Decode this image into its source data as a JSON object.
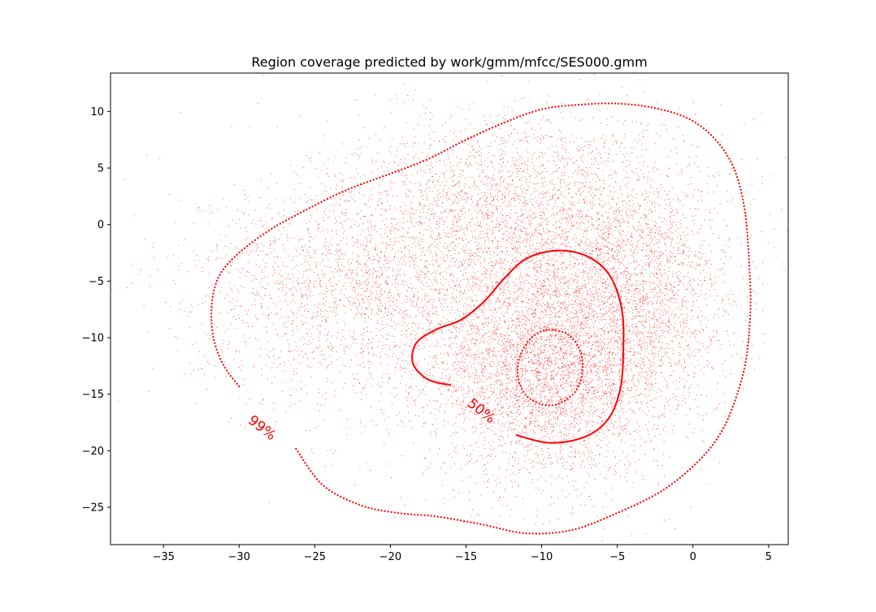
{
  "chart_data": {
    "type": "scatter",
    "title": "Region coverage predicted by work/gmm/mfcc/SES000.gmm",
    "xlabel": "",
    "ylabel": "",
    "xlim": [
      -38.5,
      6.3
    ],
    "ylim": [
      -28.3,
      13.4
    ],
    "xticks": [
      -35,
      -30,
      -25,
      -20,
      -15,
      -10,
      -5,
      0,
      5
    ],
    "yticks": [
      -25,
      -20,
      -15,
      -10,
      -5,
      0,
      5,
      10
    ],
    "grid": false,
    "color": "#ff0000",
    "scatter": {
      "approx_point_count": 12000,
      "clusters": [
        {
          "center": [
            -9.5,
            -12.5
          ],
          "std": [
            4.0,
            5.0
          ],
          "weight": 0.4
        },
        {
          "center": [
            -11.0,
            1.0
          ],
          "std": [
            5.5,
            4.5
          ],
          "weight": 0.25
        },
        {
          "center": [
            -22.0,
            -6.0
          ],
          "std": [
            5.5,
            5.0
          ],
          "weight": 0.2
        },
        {
          "center": [
            -3.0,
            -6.0
          ],
          "std": [
            3.0,
            5.0
          ],
          "weight": 0.15
        }
      ]
    },
    "contours": [
      {
        "level": "99%",
        "style": "dotted",
        "label_position": [
          -28.5,
          -18.0
        ],
        "label_rotation_deg": 38,
        "points": [
          [
            -30.0,
            -14.3
          ],
          [
            -31.0,
            -12.5
          ],
          [
            -31.7,
            -10.0
          ],
          [
            -31.8,
            -7.0
          ],
          [
            -31.3,
            -4.5
          ],
          [
            -30.0,
            -2.5
          ],
          [
            -28.0,
            -0.5
          ],
          [
            -26.0,
            1.0
          ],
          [
            -23.0,
            3.0
          ],
          [
            -20.0,
            4.5
          ],
          [
            -17.5,
            5.8
          ],
          [
            -15.0,
            7.5
          ],
          [
            -12.5,
            9.0
          ],
          [
            -10.0,
            10.2
          ],
          [
            -7.5,
            10.6
          ],
          [
            -5.0,
            10.7
          ],
          [
            -2.5,
            10.3
          ],
          [
            -0.2,
            9.3
          ],
          [
            1.5,
            7.5
          ],
          [
            2.7,
            5.0
          ],
          [
            3.4,
            1.5
          ],
          [
            3.7,
            -3.0
          ],
          [
            3.8,
            -7.5
          ],
          [
            3.5,
            -12.0
          ],
          [
            2.8,
            -15.5
          ],
          [
            1.8,
            -18.5
          ],
          [
            0.3,
            -21.0
          ],
          [
            -2.0,
            -23.5
          ],
          [
            -5.0,
            -25.5
          ],
          [
            -8.0,
            -27.0
          ],
          [
            -11.0,
            -27.3
          ],
          [
            -14.0,
            -26.5
          ],
          [
            -17.0,
            -25.8
          ],
          [
            -19.5,
            -25.5
          ],
          [
            -22.0,
            -24.8
          ],
          [
            -24.5,
            -23.0
          ],
          [
            -26.3,
            -19.7
          ]
        ]
      },
      {
        "level": "50%",
        "style": "solid",
        "label_position": [
          -14.0,
          -16.5
        ],
        "label_rotation_deg": 38,
        "points": [
          [
            -16.0,
            -14.2
          ],
          [
            -17.5,
            -13.7
          ],
          [
            -18.5,
            -12.3
          ],
          [
            -18.3,
            -10.5
          ],
          [
            -17.0,
            -9.3
          ],
          [
            -15.3,
            -8.4
          ],
          [
            -13.8,
            -6.8
          ],
          [
            -12.5,
            -4.8
          ],
          [
            -11.0,
            -3.0
          ],
          [
            -9.0,
            -2.3
          ],
          [
            -7.0,
            -2.8
          ],
          [
            -5.5,
            -4.5
          ],
          [
            -4.7,
            -7.5
          ],
          [
            -4.6,
            -11.0
          ],
          [
            -4.8,
            -14.5
          ],
          [
            -5.6,
            -17.2
          ],
          [
            -7.2,
            -18.8
          ],
          [
            -9.5,
            -19.3
          ],
          [
            -11.7,
            -18.6
          ]
        ]
      },
      {
        "level": "",
        "style": "dotted",
        "closed": true,
        "points": [
          [
            -9.5,
            -9.3
          ],
          [
            -8.3,
            -9.7
          ],
          [
            -7.5,
            -11.0
          ],
          [
            -7.3,
            -13.0
          ],
          [
            -7.8,
            -14.8
          ],
          [
            -9.0,
            -15.9
          ],
          [
            -10.2,
            -15.8
          ],
          [
            -11.2,
            -14.8
          ],
          [
            -11.6,
            -13.0
          ],
          [
            -11.3,
            -11.2
          ],
          [
            -10.5,
            -9.8
          ]
        ]
      }
    ]
  }
}
